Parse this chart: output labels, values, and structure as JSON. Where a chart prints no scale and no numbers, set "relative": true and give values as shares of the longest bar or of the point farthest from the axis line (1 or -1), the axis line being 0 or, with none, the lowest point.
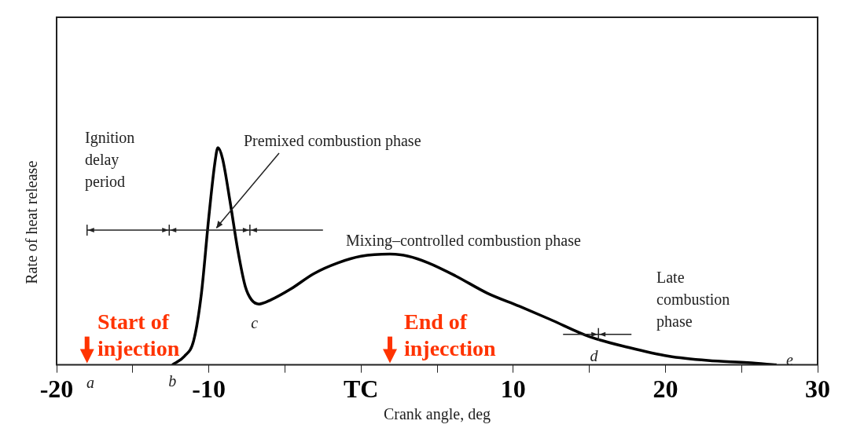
{
  "chart_data": {
    "type": "line",
    "relative": true,
    "color": "#000000",
    "marker": "none",
    "legend": false,
    "grid": false,
    "xlabel": "Crank angle, deg",
    "ylabel": "Rate of heat release",
    "xlim": [
      -20,
      30
    ],
    "xticks": [
      -20,
      {
        "value": -15,
        "label": null
      },
      -10,
      {
        "value": -5,
        "label": null
      },
      {
        "value": 0,
        "label": "TC"
      },
      {
        "value": 5,
        "label": null
      },
      10,
      {
        "value": 15,
        "label": null
      },
      20,
      {
        "value": 25,
        "label": null
      },
      30
    ],
    "x": [
      -12.4,
      -11.6,
      -11.0,
      -10.5,
      -10.0,
      -9.6,
      -9.4,
      -9.1,
      -8.6,
      -8.1,
      -7.6,
      -7.2,
      -6.7,
      -5.9,
      -4.6,
      -3.1,
      -1.5,
      0.0,
      1.9,
      3.1,
      4.4,
      6.2,
      8.3,
      10.4,
      12.4,
      15.0,
      17.6,
      20.2,
      22.8,
      25.4,
      27.3
    ],
    "values": [
      0,
      0.04,
      0.11,
      0.32,
      0.68,
      0.93,
      1,
      0.95,
      0.75,
      0.53,
      0.36,
      0.3,
      0.28,
      0.3,
      0.35,
      0.42,
      0.47,
      0.5,
      0.51,
      0.5,
      0.47,
      0.41,
      0.33,
      0.27,
      0.21,
      0.13,
      0.08,
      0.04,
      0.02,
      0.01,
      0
    ],
    "annotations": [
      "Ignition\ndelay\nperiod",
      "Premixed combustion phase",
      "Mixing–controlled combustion phase",
      "Late\ncombustion\nphase",
      "Start of\ninjection",
      "End of\ninjecction",
      "a",
      {
        "text": "b",
        "x": -12.4,
        "y": 0
      },
      {
        "text": "c",
        "x": -7,
        "y": 0.28
      },
      {
        "text": "d",
        "x": 15.3,
        "y": 0.13
      },
      "e"
    ]
  }
}
